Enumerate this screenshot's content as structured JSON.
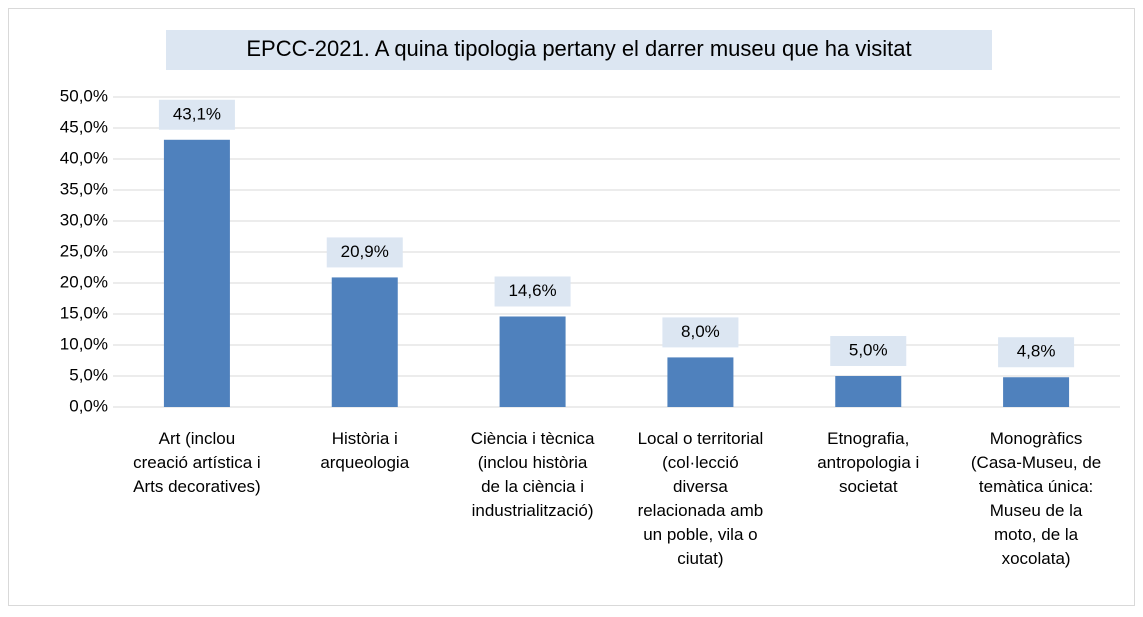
{
  "chart_data": {
    "type": "bar",
    "title": "EPCC-2021. A quina tipologia pertany el darrer museu que ha visitat",
    "categories": [
      [
        "Art (inclou",
        "creació artística i",
        "Arts decoratives)"
      ],
      [
        "Història i",
        "arqueologia"
      ],
      [
        "Ciència i tècnica",
        "(inclou història",
        "de la ciència i",
        "industrialització)"
      ],
      [
        "Local o territorial",
        "(col·lecció",
        "diversa",
        "relacionada amb",
        "un poble, vila o",
        "ciutat)"
      ],
      [
        "Etnografia,",
        "antropologia i",
        "societat"
      ],
      [
        "Monogràfics",
        "(Casa-Museu, de",
        "temàtica única:",
        "Museu de la",
        "moto, de la",
        "xocolata)"
      ]
    ],
    "values": [
      43.1,
      20.9,
      14.6,
      8.0,
      5.0,
      4.8
    ],
    "value_labels": [
      "43,1%",
      "20,9%",
      "14,6%",
      "8,0%",
      "5,0%",
      "4,8%"
    ],
    "color": "#4f81bd",
    "ylim": [
      0,
      50
    ],
    "yticks": [
      {
        "value": 0,
        "label": "0,0%"
      },
      {
        "value": 5,
        "label": "5,0%"
      },
      {
        "value": 10,
        "label": "10,0%"
      },
      {
        "value": 15,
        "label": "15,0%"
      },
      {
        "value": 20,
        "label": "20,0%"
      },
      {
        "value": 25,
        "label": "25,0%"
      },
      {
        "value": 30,
        "label": "30,0%"
      },
      {
        "value": 35,
        "label": "35,0%"
      },
      {
        "value": 40,
        "label": "40,0%"
      },
      {
        "value": 45,
        "label": "45,0%"
      },
      {
        "value": 50,
        "label": "50,0%"
      }
    ],
    "grid": true
  }
}
